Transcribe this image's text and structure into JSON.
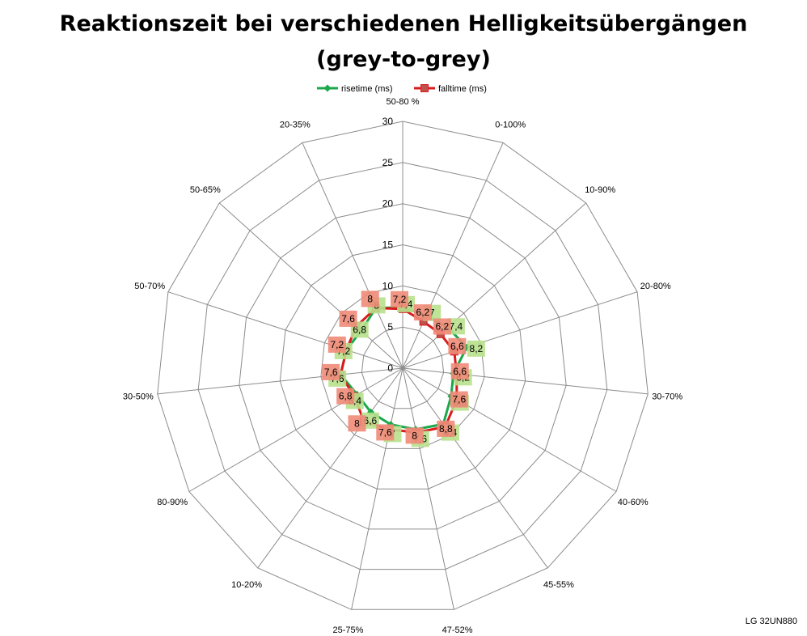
{
  "chart_data": {
    "type": "radar",
    "title_line1": "Reaktionszeit bei verschiedenen Helligkeitsübergängen",
    "title_line2": "(grey-to-grey)",
    "rmax": 30,
    "rticks": [
      0,
      5,
      10,
      15,
      20,
      25,
      30
    ],
    "grid": true,
    "legend_position": "top",
    "categories": [
      "50-80 %",
      "0-100%",
      "10-90%",
      "20-80%",
      "30-70%",
      "40-60%",
      "45-55%",
      "47-52%",
      "25-75%",
      "10-20%",
      "80-90%",
      "30-50%",
      "50-70%",
      "50-65%",
      "20-35%"
    ],
    "series": [
      {
        "name": "risetime (ms)",
        "color": "#1aa84a",
        "label_color": "#b8e08c",
        "marker": "diamond",
        "values": [
          7.4,
          7,
          7.4,
          8.2,
          6.2,
          6.8,
          8.4,
          7.6,
          7,
          6.6,
          6.4,
          7.6,
          7.2,
          6.8,
          8
        ],
        "labels": [
          "7,4",
          "7",
          "7,4",
          "8,2",
          "6,2",
          "6,8",
          "8,4",
          "7,6",
          "7",
          "6,6",
          "6,4",
          "7,6",
          "7,2",
          "6,8",
          "8"
        ]
      },
      {
        "name": "falltime (ms)",
        "color": "#d81c1c",
        "label_color": "#f08a78",
        "marker": "square",
        "values": [
          7.2,
          6.2,
          6.2,
          6.6,
          6.6,
          7.6,
          8.8,
          8,
          7.6,
          8,
          6.8,
          7.6,
          7.2,
          7.6,
          8
        ],
        "labels": [
          "7,2",
          "6,2",
          "6,2",
          "6,6",
          "6,6",
          "7,6",
          "8,8",
          "8",
          "7,6",
          "8",
          "6,8",
          "7,6",
          "7,2",
          "7,6",
          "8"
        ]
      }
    ]
  },
  "watermark": "LG 32UN880"
}
